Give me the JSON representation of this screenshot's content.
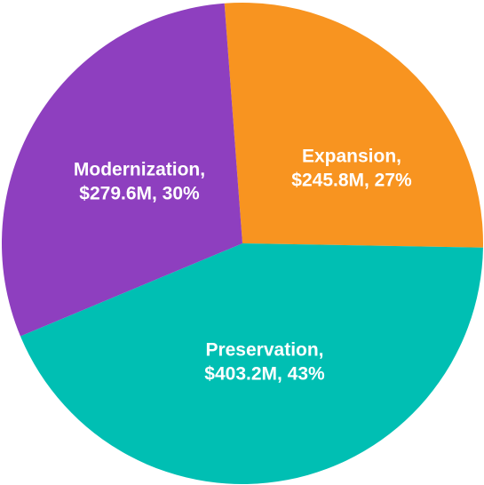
{
  "chart_data": {
    "type": "pie",
    "categories": [
      "Expansion,",
      "Preservation,",
      "Modernization,"
    ],
    "values": [
      245.8,
      403.2,
      279.6
    ],
    "value_labels": [
      "$245.8M, 27%",
      "$403.2M, 43%",
      "$279.6M, 30%"
    ],
    "colors": [
      "#f89420",
      "#00bfb3",
      "#8e3fbf"
    ]
  }
}
